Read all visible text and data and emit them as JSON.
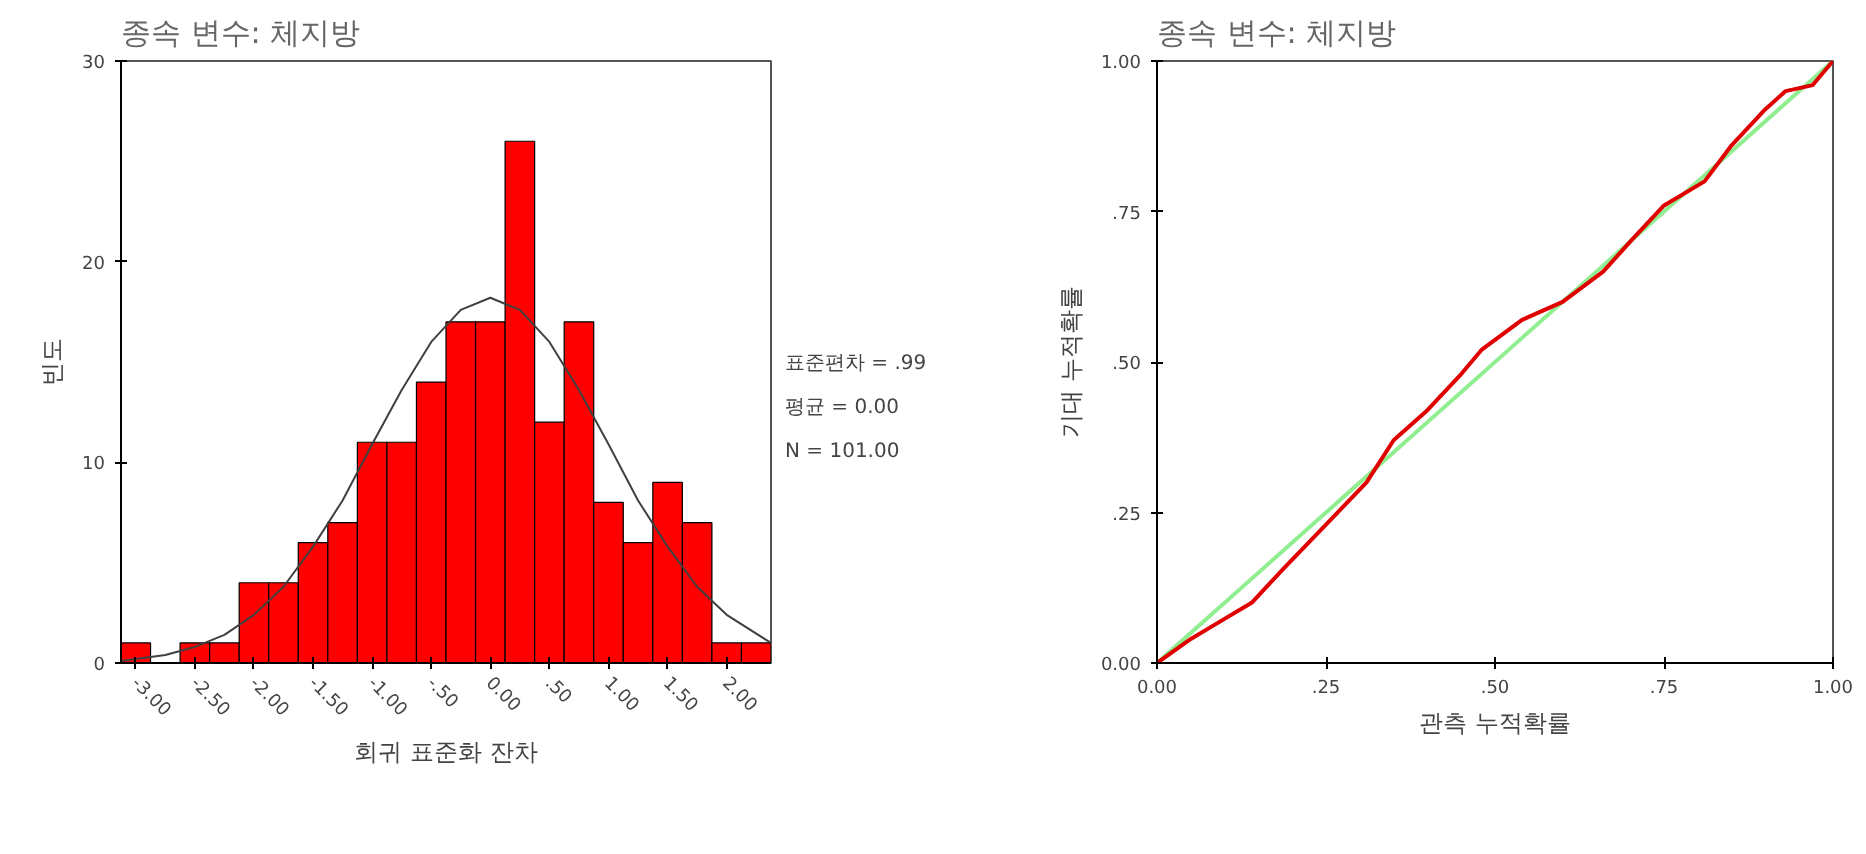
{
  "chart_data": [
    {
      "type": "histogram",
      "title": "종속 변수: 체지방",
      "xlabel": "회귀 표준화 잔차",
      "ylabel": "빈도",
      "bins": [
        -3.125,
        -2.875,
        -2.625,
        -2.375,
        -2.125,
        -1.875,
        -1.625,
        -1.375,
        -1.125,
        -0.875,
        -0.625,
        -0.375,
        -0.125,
        0.125,
        0.375,
        0.625,
        0.875,
        1.125,
        1.375,
        1.625,
        1.875,
        2.125,
        2.375
      ],
      "values": [
        1,
        0,
        1,
        1,
        4,
        4,
        6,
        7,
        11,
        11,
        14,
        17,
        17,
        26,
        12,
        17,
        8,
        6,
        9,
        7,
        1,
        1
      ],
      "color": "#ff0000",
      "series": [
        {
          "type": "line",
          "color": "#404040",
          "x": [
            -3.125,
            -2.75,
            -2.5,
            -2.25,
            -2,
            -1.75,
            -1.5,
            -1.25,
            -1,
            -0.75,
            -0.5,
            -0.25,
            0,
            0.25,
            0.5,
            0.75,
            1,
            1.25,
            1.5,
            1.75,
            2,
            2.375
          ],
          "values": [
            0.1,
            0.4,
            0.8,
            1.4,
            2.4,
            3.8,
            5.8,
            8.1,
            10.9,
            13.6,
            16.0,
            17.6,
            18.2,
            17.6,
            16.0,
            13.6,
            10.9,
            8.1,
            5.8,
            3.8,
            2.4,
            1.0
          ]
        }
      ],
      "xlim": [
        -3.125,
        2.375
      ],
      "xticks": [
        {
          "value": -3,
          "label": "-3.00"
        },
        {
          "value": -2.5,
          "label": "-2.50"
        },
        {
          "value": -2,
          "label": "-2.00"
        },
        {
          "value": -1.5,
          "label": "-1.50"
        },
        {
          "value": -1,
          "label": "-1.00"
        },
        {
          "value": -0.5,
          "label": "-.50"
        },
        {
          "value": 0,
          "label": "0.00"
        },
        {
          "value": 0.5,
          "label": ".50"
        },
        {
          "value": 1,
          "label": "1.00"
        },
        {
          "value": 1.5,
          "label": "1.50"
        },
        {
          "value": 2,
          "label": "2.00"
        }
      ],
      "ylim": [
        0,
        30
      ],
      "yticks": [
        0,
        10,
        20,
        30
      ],
      "annotations": [
        "표준편차 = .99",
        "평균 = 0.00",
        "N = 101.00"
      ]
    },
    {
      "type": "line",
      "title": "종속 변수: 체지방",
      "xlabel": "관측 누적확률",
      "ylabel": "기대 누적확률",
      "series": [
        {
          "color": "#90ee90",
          "x": [
            0,
            1
          ],
          "values": [
            0,
            1
          ]
        },
        {
          "color": "#e00000",
          "x": [
            0,
            0.05,
            0.08,
            0.14,
            0.19,
            0.25,
            0.31,
            0.35,
            0.4,
            0.45,
            0.48,
            0.54,
            0.6,
            0.66,
            0.7,
            0.75,
            0.81,
            0.85,
            0.9,
            0.93,
            0.97,
            1
          ],
          "values": [
            0,
            0.04,
            0.06,
            0.1,
            0.16,
            0.23,
            0.3,
            0.37,
            0.42,
            0.48,
            0.52,
            0.57,
            0.6,
            0.65,
            0.7,
            0.76,
            0.8,
            0.86,
            0.92,
            0.95,
            0.96,
            1
          ]
        }
      ],
      "xlim": [
        0,
        1
      ],
      "xticks": [
        {
          "value": 0,
          "label": "0.00"
        },
        {
          "value": 0.25,
          "label": ".25"
        },
        {
          "value": 0.5,
          "label": ".50"
        },
        {
          "value": 0.75,
          "label": ".75"
        },
        {
          "value": 1,
          "label": "1.00"
        }
      ],
      "ylim": [
        0,
        1
      ],
      "yticks": [
        {
          "value": 0,
          "label": "0.00"
        },
        {
          "value": 0.25,
          "label": ".25"
        },
        {
          "value": 0.5,
          "label": ".50"
        },
        {
          "value": 0.75,
          "label": ".75"
        },
        {
          "value": 1,
          "label": "1.00"
        }
      ]
    }
  ]
}
